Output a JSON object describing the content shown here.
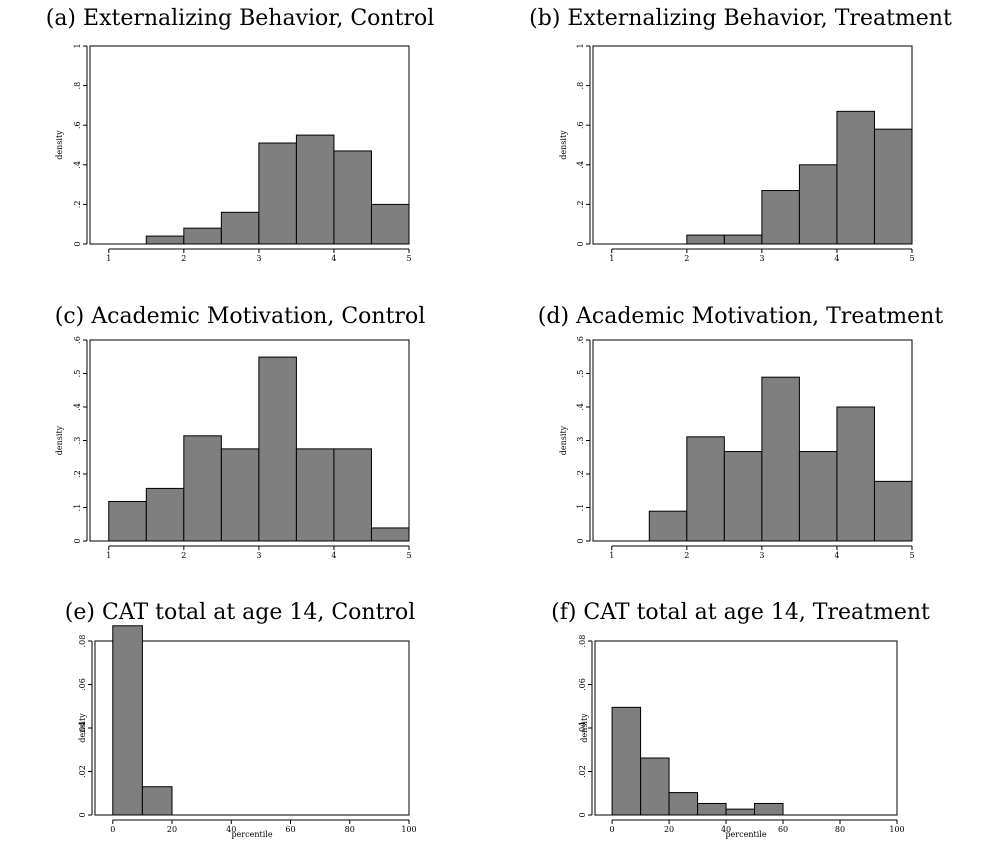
{
  "chart_data": [
    {
      "type": "bar",
      "title": "(a) Externalizing Behavior, Control",
      "xlabel": "",
      "ylabel": "density",
      "bin_edges": [
        1,
        1.5,
        2,
        2.5,
        3,
        3.5,
        4,
        4.5,
        5
      ],
      "values": [
        0,
        0.04,
        0.08,
        0.16,
        0.51,
        0.55,
        0.47,
        0.2
      ],
      "xlim": [
        0.75,
        5
      ],
      "ylim": [
        0,
        1
      ],
      "xticks": [
        1,
        2,
        3,
        4,
        5
      ],
      "xtick_labels": [
        "1",
        "2",
        "3",
        "4",
        "5"
      ],
      "yticks": [
        0,
        0.2,
        0.4,
        0.6,
        0.8,
        1
      ],
      "ytick_labels": [
        "0",
        ".2",
        ".4",
        ".6",
        ".8",
        "1"
      ],
      "grid": false
    },
    {
      "type": "bar",
      "title": "(b) Externalizing Behavior, Treatment",
      "xlabel": "",
      "ylabel": "density",
      "bin_edges": [
        1,
        1.5,
        2,
        2.5,
        3,
        3.5,
        4,
        4.5,
        5
      ],
      "values": [
        0,
        0,
        0.045,
        0.045,
        0.27,
        0.4,
        0.67,
        0.58
      ],
      "xlim": [
        0.75,
        5
      ],
      "ylim": [
        0,
        1
      ],
      "xticks": [
        1,
        2,
        3,
        4,
        5
      ],
      "xtick_labels": [
        "1",
        "2",
        "3",
        "4",
        "5"
      ],
      "yticks": [
        0,
        0.2,
        0.4,
        0.6,
        0.8,
        1
      ],
      "ytick_labels": [
        "0",
        ".2",
        ".4",
        ".6",
        ".8",
        "1"
      ],
      "grid": false
    },
    {
      "type": "bar",
      "title": "(c) Academic Motivation, Control",
      "xlabel": "",
      "ylabel": "density",
      "bin_edges": [
        1,
        1.5,
        2,
        2.5,
        3,
        3.5,
        4,
        4.5,
        5
      ],
      "values": [
        0.118,
        0.157,
        0.314,
        0.275,
        0.549,
        0.275,
        0.275,
        0.039
      ],
      "xlim": [
        0.75,
        5
      ],
      "ylim": [
        0,
        0.6
      ],
      "xticks": [
        1,
        2,
        3,
        4,
        5
      ],
      "xtick_labels": [
        "1",
        "2",
        "3",
        "4",
        "5"
      ],
      "yticks": [
        0,
        0.1,
        0.2,
        0.3,
        0.4,
        0.5,
        0.6
      ],
      "ytick_labels": [
        "0",
        ".1",
        ".2",
        ".3",
        ".4",
        ".5",
        ".6"
      ],
      "grid": false
    },
    {
      "type": "bar",
      "title": "(d) Academic Motivation, Treatment",
      "xlabel": "",
      "ylabel": "density",
      "bin_edges": [
        1,
        1.5,
        2,
        2.5,
        3,
        3.5,
        4,
        4.5,
        5
      ],
      "values": [
        0,
        0.089,
        0.311,
        0.267,
        0.489,
        0.267,
        0.4,
        0.178
      ],
      "xlim": [
        0.75,
        5
      ],
      "ylim": [
        0,
        0.6
      ],
      "xticks": [
        1,
        2,
        3,
        4,
        5
      ],
      "xtick_labels": [
        "1",
        "2",
        "3",
        "4",
        "5"
      ],
      "yticks": [
        0,
        0.1,
        0.2,
        0.3,
        0.4,
        0.5,
        0.6
      ],
      "ytick_labels": [
        "0",
        ".1",
        ".2",
        ".3",
        ".4",
        ".5",
        ".6"
      ],
      "grid": false
    },
    {
      "type": "bar",
      "title": "(e) CAT total at age 14, Control",
      "xlabel": "percentile",
      "ylabel": "density",
      "bin_edges": [
        0,
        10,
        20,
        30,
        40,
        50,
        60,
        70,
        80,
        90,
        100
      ],
      "values": [
        0.087,
        0.013,
        0,
        0,
        0,
        0,
        0,
        0,
        0,
        0
      ],
      "xlim": [
        -6,
        100
      ],
      "ylim": [
        0,
        0.08
      ],
      "xticks": [
        0,
        20,
        40,
        60,
        80,
        100
      ],
      "xtick_labels": [
        "0",
        "20",
        "40",
        "60",
        "80",
        "100"
      ],
      "yticks": [
        0,
        0.02,
        0.04,
        0.06,
        0.08
      ],
      "ytick_labels": [
        "0",
        ".02",
        ".04",
        ".06",
        ".08"
      ],
      "grid": false
    },
    {
      "type": "bar",
      "title": "(f) CAT total at age 14, Treatment",
      "xlabel": "percentile",
      "ylabel": "density",
      "bin_edges": [
        0,
        10,
        20,
        30,
        40,
        50,
        60,
        70,
        80,
        90,
        100
      ],
      "values": [
        0.0495,
        0.0262,
        0.0103,
        0.0053,
        0.0027,
        0.0053,
        0,
        0,
        0,
        0
      ],
      "xlim": [
        -6,
        100
      ],
      "ylim": [
        0,
        0.08
      ],
      "xticks": [
        0,
        20,
        40,
        60,
        80,
        100
      ],
      "xtick_labels": [
        "0",
        "20",
        "40",
        "60",
        "80",
        "100"
      ],
      "yticks": [
        0,
        0.02,
        0.04,
        0.06,
        0.08
      ],
      "ytick_labels": [
        "0",
        ".02",
        ".04",
        ".06",
        ".08"
      ],
      "grid": false
    }
  ],
  "colors": {
    "bar_fill": "#7f7f7f",
    "bar_stroke": "#000000"
  }
}
